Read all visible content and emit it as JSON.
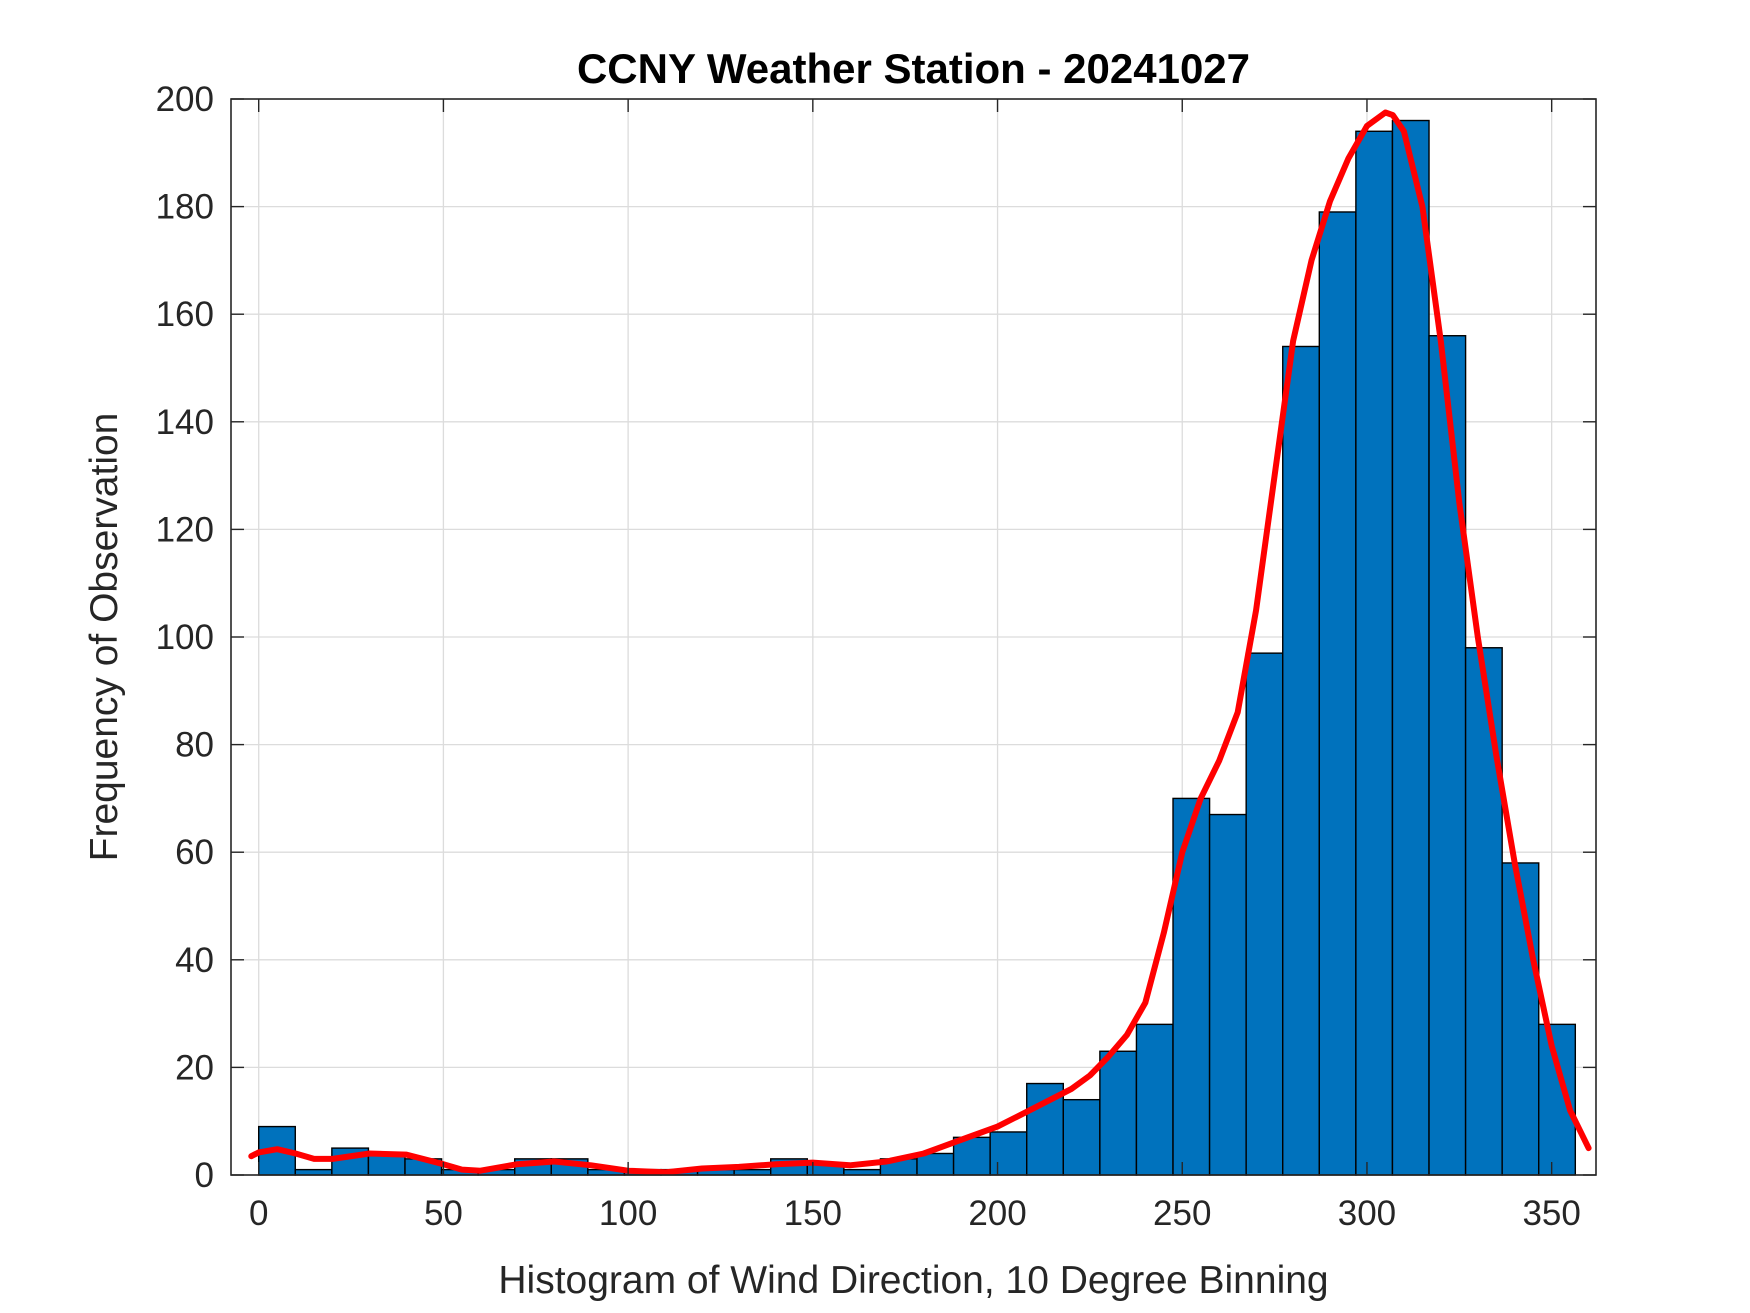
{
  "chart_data": {
    "type": "bar",
    "title": "CCNY Weather Station - 20241027",
    "xlabel": "Histogram of Wind Direction, 10 Degree Binning",
    "ylabel": "Frequency of Observation",
    "xlim": [
      -7.5,
      362
    ],
    "ylim": [
      0,
      200
    ],
    "xticks": [
      0,
      50,
      100,
      150,
      200,
      250,
      300,
      350
    ],
    "yticks": [
      0,
      20,
      40,
      60,
      80,
      100,
      120,
      140,
      160,
      180,
      200
    ],
    "grid": true,
    "legend": "none",
    "bin_width": 9.9,
    "bin_start": 0,
    "values": [
      9,
      1,
      5,
      4,
      3,
      1,
      1,
      3,
      3,
      1,
      1,
      1,
      1,
      1,
      3,
      2,
      1,
      3,
      4,
      7,
      8,
      17,
      14,
      23,
      28,
      70,
      67,
      97,
      154,
      179,
      194,
      196,
      156,
      98,
      58,
      28
    ],
    "fit_curve": {
      "x": [
        -2,
        0,
        5,
        10,
        15,
        20,
        30,
        40,
        50,
        55,
        60,
        70,
        80,
        90,
        100,
        110,
        120,
        130,
        140,
        150,
        160,
        170,
        180,
        190,
        200,
        210,
        220,
        225,
        230,
        235,
        240,
        245,
        250,
        255,
        260,
        265,
        270,
        275,
        280,
        285,
        290,
        295,
        300,
        305,
        307,
        310,
        315,
        320,
        325,
        330,
        335,
        340,
        345,
        350,
        355,
        360
      ],
      "y": [
        3.5,
        4.2,
        4.8,
        4,
        3,
        3,
        4,
        3.8,
        2,
        1,
        0.8,
        2,
        2.5,
        1.8,
        0.8,
        0.5,
        1.2,
        1.5,
        2,
        2.3,
        1.8,
        2.5,
        4,
        6.5,
        9,
        12.5,
        16,
        18.5,
        22,
        26,
        32,
        45,
        60,
        70,
        77,
        86,
        105,
        130,
        155,
        170,
        181,
        189,
        195,
        197.5,
        197,
        194,
        180,
        155,
        125,
        100,
        78,
        58,
        40,
        24,
        12,
        5
      ],
      "color": "#ff0000"
    },
    "bar_color": "#0072bd"
  }
}
